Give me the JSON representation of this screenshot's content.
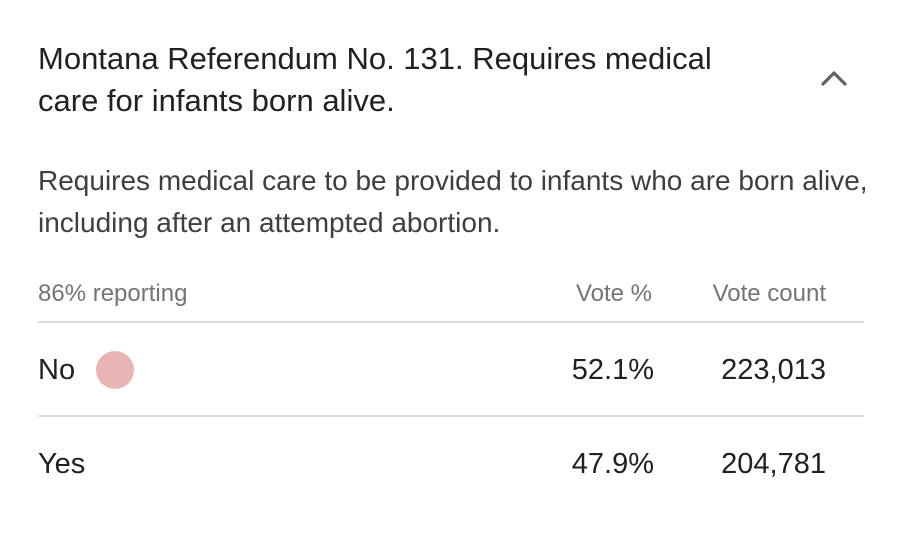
{
  "measure": {
    "title": "Montana Referendum No. 131. Requires medical care for infants born alive.",
    "description": "Requires medical care to be provided to infants who are born alive, including after an attempted abortion."
  },
  "table": {
    "reporting": "86% reporting",
    "col_vote_pct": "Vote %",
    "col_vote_count": "Vote count",
    "rows": [
      {
        "label": "No",
        "vote_pct": "52.1%",
        "vote_count": "223,013",
        "winner": true
      },
      {
        "label": "Yes",
        "vote_pct": "47.9%",
        "vote_count": "204,781",
        "winner": false
      }
    ]
  },
  "colors": {
    "winner_dot": "#e8b4b4",
    "divider": "#dadce0",
    "muted_text": "#70757a"
  },
  "icons": {
    "collapse": "chevron-up-icon",
    "winner": "winner-dot-icon"
  }
}
